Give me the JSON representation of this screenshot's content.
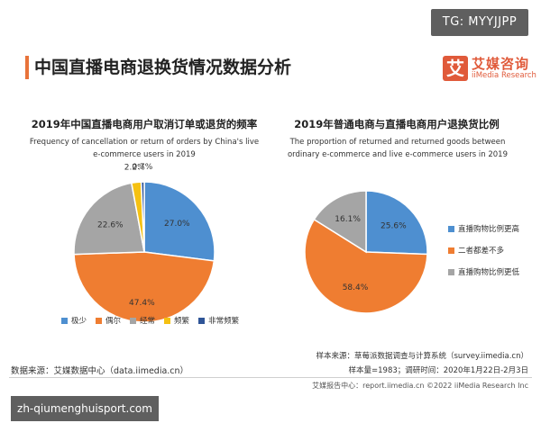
{
  "watermark_tag": "TG: MYYJJPP",
  "header": {
    "title": "中国直播电商退换货情况数据分析",
    "accent_color": "#e8733a"
  },
  "brand": {
    "mark": "艾",
    "name_cn": "艾媒咨询",
    "name_en": "iiMedia Research",
    "color": "#e05a3a"
  },
  "chart_data": [
    {
      "type": "pie",
      "title": "2019年中国直播电商用户取消订单或退货的频率",
      "subtitle": "Frequency of cancellation or return of orders by China's live e-commerce users in 2019",
      "categories": [
        "极少",
        "偶尔",
        "经常",
        "频繁",
        "非常频繁"
      ],
      "values": [
        27.0,
        47.4,
        22.6,
        2.2,
        0.7
      ],
      "labels": [
        "27.0%",
        "47.4%",
        "22.6%",
        "2.2%",
        "0.7%"
      ],
      "colors": [
        "#4e8fd0",
        "#ef7d31",
        "#a5a5a5",
        "#f5c112",
        "#2f5597"
      ],
      "legend_position": "bottom"
    },
    {
      "type": "pie",
      "title": "2019年普通电商与直播电商用户退换货比例",
      "subtitle": "The proportion of returned and returned goods between ordinary e-commerce and live e-commerce users in 2019",
      "categories": [
        "直播购物比例更高",
        "二者都差不多",
        "直播购物比例更低"
      ],
      "values": [
        25.6,
        58.4,
        16.1
      ],
      "labels": [
        "25.6%",
        "58.4%",
        "16.1%"
      ],
      "colors": [
        "#4e8fd0",
        "#ef7d31",
        "#a5a5a5"
      ],
      "legend_position": "right"
    }
  ],
  "sources": {
    "left": "数据来源：艾媒数据中心（data.iimedia.cn）",
    "right_line1": "样本来源：草莓派数据调查与计算系统（survey.iimedia.cn）",
    "right_line2": "样本量=1983；调研时间：2020年1月22日-2月3日"
  },
  "footer": "艾媒报告中心：report.iimedia.cn ©2022 iiMedia Research Inc",
  "site_tag": "zh-qiumenghuisport.com"
}
